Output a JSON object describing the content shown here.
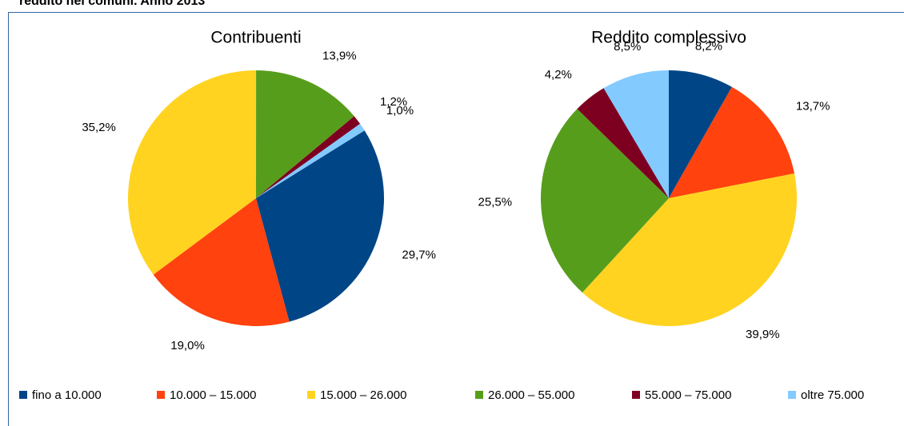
{
  "page_title": "reddito nei comuni. Anno 2013",
  "legend": {
    "categories": [
      "fino a 10.000",
      "10.000 – 15.000",
      "15.000 – 26.000",
      "26.000 – 55.000",
      "55.000 – 75.000",
      "oltre 75.000"
    ],
    "colors": [
      "#004586",
      "#ff420e",
      "#ffd320",
      "#579d1c",
      "#7e0021",
      "#83caff"
    ]
  },
  "chart_data": [
    {
      "type": "pie",
      "title": "Contribuenti",
      "values": [
        29.7,
        19.0,
        35.2,
        13.9,
        1.2,
        1.0
      ],
      "value_labels": [
        "29,7%",
        "19,0%",
        "35,2%",
        "13,9%",
        "1,2%",
        "1,0%"
      ]
    },
    {
      "type": "pie",
      "title": "Reddito complessivo",
      "values": [
        8.2,
        13.7,
        39.9,
        25.5,
        4.2,
        8.5
      ],
      "value_labels": [
        "8,2%",
        "13,7%",
        "39,9%",
        "25,5%",
        "4,2%",
        "8,5%"
      ]
    }
  ]
}
